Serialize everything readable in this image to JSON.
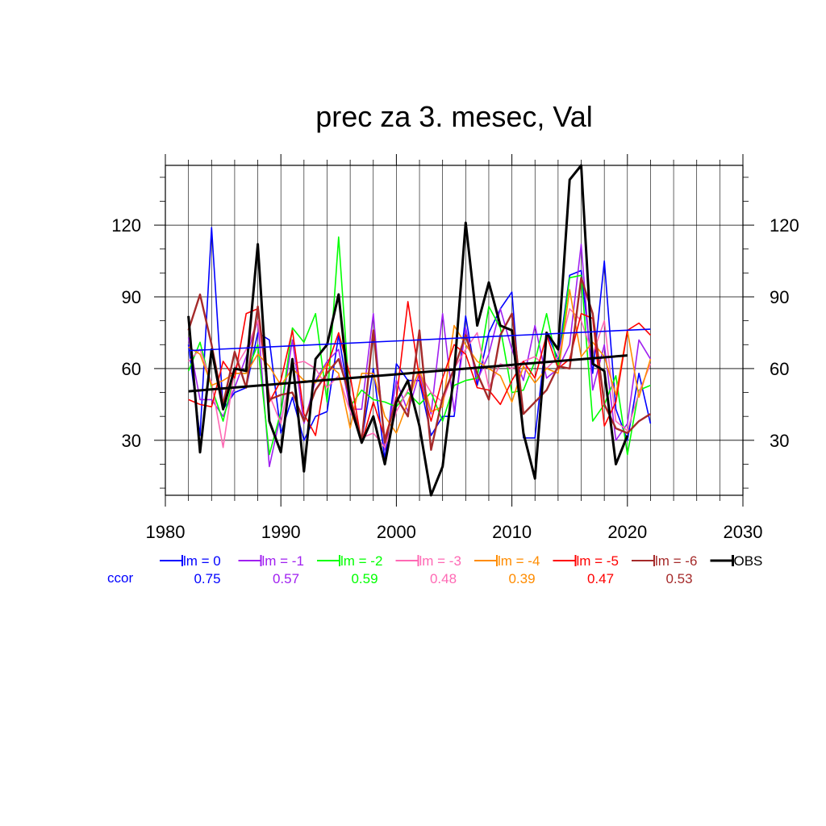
{
  "chart_data": {
    "type": "line",
    "title": "prec za 3. mesec, Val",
    "xlim": [
      1980,
      2030
    ],
    "ylim": [
      7,
      145
    ],
    "x_ticks": [
      1980,
      1990,
      2000,
      2010,
      2020,
      2030
    ],
    "y_ticks": [
      30,
      60,
      90,
      120
    ],
    "grid": true,
    "legend_position": "bottom",
    "ccor_label": "ccor",
    "years_models": [
      1982,
      1983,
      1984,
      1985,
      1986,
      1987,
      1988,
      1989,
      1990,
      1991,
      1992,
      1993,
      1994,
      1995,
      1996,
      1997,
      1998,
      1999,
      2000,
      2001,
      2002,
      2003,
      2004,
      2005,
      2006,
      2007,
      2008,
      2009,
      2010,
      2011,
      2012,
      2013,
      2014,
      2015,
      2016,
      2017,
      2018,
      2019,
      2020,
      2021,
      2022
    ],
    "years_obs": [
      1982,
      1983,
      1984,
      1985,
      1986,
      1987,
      1988,
      1989,
      1990,
      1991,
      1992,
      1993,
      1994,
      1995,
      1996,
      1997,
      1998,
      1999,
      2000,
      2001,
      2002,
      2003,
      2004,
      2005,
      2006,
      2007,
      2008,
      2009,
      2010,
      2011,
      2012,
      2013,
      2014,
      2015,
      2016,
      2017,
      2018,
      2019,
      2020
    ],
    "series": [
      {
        "name": "lm = 0",
        "color": "#0000ff",
        "ccor": "0.75",
        "width": 1.6,
        "values": [
          70,
          32,
          119,
          43,
          50,
          52,
          75,
          72,
          33,
          48,
          30,
          40,
          42,
          74,
          45,
          30,
          60,
          22,
          62,
          55,
          55,
          32,
          40,
          40,
          82,
          53,
          75,
          85,
          92,
          31,
          31,
          75,
          64,
          99,
          101,
          58,
          105,
          43,
          30,
          58,
          37
        ],
        "trend": [
          67.5,
          76.5
        ]
      },
      {
        "name": "lm = -1",
        "color": "#a020f0",
        "ccor": "0.57",
        "width": 1.6,
        "values": [
          73,
          47,
          47,
          40,
          52,
          65,
          80,
          19,
          41,
          72,
          37,
          55,
          63,
          68,
          43,
          43,
          83,
          26,
          55,
          42,
          58,
          41,
          83,
          42,
          77,
          55,
          66,
          85,
          68,
          55,
          78,
          56,
          60,
          70,
          112,
          51,
          70,
          30,
          37,
          72,
          64
        ]
      },
      {
        "name": "lm = -2",
        "color": "#00ff00",
        "ccor": "0.59",
        "width": 1.6,
        "values": [
          59,
          71,
          52,
          38,
          58,
          58,
          70,
          24,
          42,
          77,
          71,
          83,
          46,
          115,
          44,
          51,
          47,
          46,
          44,
          50,
          45,
          50,
          38,
          53,
          55,
          56,
          86,
          77,
          50,
          51,
          63,
          83,
          60,
          98,
          99,
          38,
          45,
          57,
          24,
          51,
          53
        ]
      },
      {
        "name": "lm = -3",
        "color": "#ff69b4",
        "ccor": "0.48",
        "width": 1.6,
        "values": [
          63,
          68,
          54,
          27,
          60,
          68,
          80,
          49,
          37,
          62,
          63,
          60,
          52,
          57,
          42,
          31,
          33,
          27,
          42,
          51,
          58,
          50,
          46,
          60,
          68,
          75,
          52,
          62,
          60,
          63,
          65,
          60,
          65,
          85,
          80,
          66,
          80,
          38,
          34,
          50,
          62
        ]
      },
      {
        "name": "lm = -4",
        "color": "#ff8c00",
        "ccor": "0.39",
        "width": 1.6,
        "values": [
          69,
          66,
          53,
          55,
          58,
          58,
          66,
          61,
          53,
          60,
          55,
          54,
          62,
          58,
          35,
          58,
          58,
          40,
          33,
          46,
          60,
          42,
          44,
          78,
          70,
          63,
          60,
          57,
          46,
          61,
          54,
          60,
          58,
          93,
          65,
          71,
          65,
          49,
          76,
          48,
          64
        ]
      },
      {
        "name": "lm = -5",
        "color": "#ff0000",
        "ccor": "0.47",
        "width": 1.6,
        "values": [
          47,
          45,
          44,
          63,
          56,
          83,
          85,
          46,
          55,
          76,
          41,
          32,
          61,
          75,
          57,
          29,
          46,
          31,
          47,
          88,
          56,
          38,
          56,
          70,
          66,
          52,
          51,
          45,
          55,
          63,
          56,
          74,
          60,
          64,
          83,
          81,
          36,
          46,
          76,
          79,
          74
        ]
      },
      {
        "name": "lm = -6",
        "color": "#a52a2a",
        "ccor": "0.53",
        "width": 2.4,
        "values": [
          76,
          91,
          70,
          45,
          67,
          52,
          86,
          47,
          49,
          50,
          38,
          51,
          58,
          64,
          48,
          30,
          76,
          29,
          48,
          40,
          76,
          26,
          48,
          60,
          74,
          58,
          47,
          74,
          83,
          41,
          46,
          51,
          61,
          60,
          98,
          83,
          45,
          35,
          33,
          38,
          41
        ]
      },
      {
        "name": "OBS",
        "color": "#000000",
        "width": 3,
        "values": [
          82,
          25,
          68,
          43,
          60,
          59,
          112,
          38,
          25,
          64,
          17,
          64,
          70,
          91,
          45,
          29,
          40,
          20,
          46,
          55,
          36,
          7,
          19,
          58,
          121,
          78,
          96,
          78,
          76,
          33,
          14,
          75,
          68,
          139,
          145,
          62,
          59,
          20,
          32
        ],
        "trend": [
          50.5,
          65.5
        ]
      }
    ]
  }
}
